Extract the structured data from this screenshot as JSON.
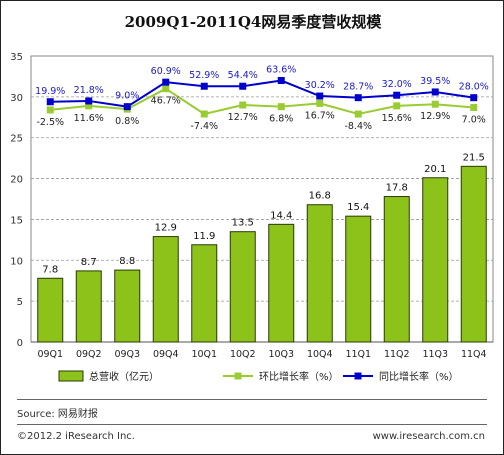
{
  "chart_data": {
    "type": "bar",
    "title": "2009Q1-2011Q4网易季度营收规模",
    "categories": [
      "09Q1",
      "09Q2",
      "09Q3",
      "09Q4",
      "10Q1",
      "10Q2",
      "10Q3",
      "10Q4",
      "11Q1",
      "11Q2",
      "11Q3",
      "11Q4"
    ],
    "ylim": [
      0,
      35
    ],
    "yticks": [
      0,
      5,
      10,
      15,
      20,
      25,
      30,
      35
    ],
    "grid": true,
    "legend_position": "bottom",
    "series": [
      {
        "name": "总营收（亿元）",
        "kind": "bar",
        "color": "#8cc219",
        "values": [
          7.8,
          8.7,
          8.8,
          12.9,
          11.9,
          13.5,
          14.4,
          16.8,
          15.4,
          17.8,
          20.1,
          21.5
        ],
        "labels": [
          "7.8",
          "8.7",
          "8.8",
          "12.9",
          "11.9",
          "13.5",
          "14.4",
          "16.8",
          "15.4",
          "17.8",
          "20.1",
          "21.5"
        ]
      },
      {
        "name": "环比增长率（%）",
        "kind": "line",
        "color": "#99cc33",
        "plot_y": [
          28.4,
          28.9,
          28.5,
          31.0,
          27.9,
          29.0,
          28.8,
          29.2,
          27.9,
          28.9,
          29.1,
          28.7
        ],
        "labels": [
          "-2.5%",
          "11.6%",
          "0.8%",
          "46.7%",
          "-7.4%",
          "12.7%",
          "6.8%",
          "16.7%",
          "-8.4%",
          "15.6%",
          "12.9%",
          "7.0%"
        ]
      },
      {
        "name": "同比增长率（%）",
        "kind": "line",
        "color": "#0000cc",
        "plot_y": [
          29.4,
          29.5,
          28.8,
          31.8,
          31.3,
          31.3,
          32.0,
          30.1,
          29.9,
          30.2,
          30.6,
          29.9
        ],
        "labels": [
          "19.9%",
          "21.8%",
          "9.0%",
          "60.9%",
          "52.9%",
          "54.4%",
          "63.6%",
          "30.2%",
          "28.7%",
          "32.0%",
          "39.5%",
          "28.0%"
        ]
      }
    ]
  },
  "footer": {
    "source": "Source:  网易财报",
    "copyright": "©2012.2 iResearch Inc.",
    "website": "www.iresearch.com.cn"
  }
}
